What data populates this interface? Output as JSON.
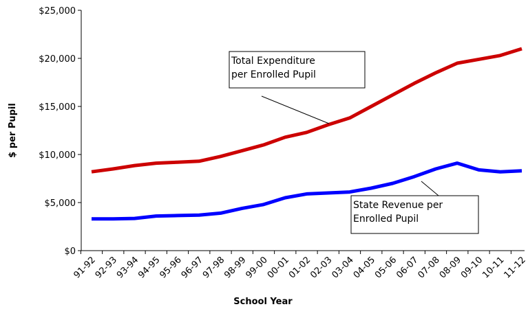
{
  "chart_data": {
    "type": "line",
    "x_label": "School Year",
    "y_label": "$ per Pupil",
    "categories": [
      "91-92",
      "92-93",
      "93-94",
      "94-95",
      "95-96",
      "96-97",
      "97-98",
      "98-99",
      "99-00",
      "00-01",
      "01-02",
      "02-03",
      "03-04",
      "04-05",
      "05-06",
      "06-07",
      "07-08",
      "08-09",
      "09-10",
      "10-11",
      "11-12"
    ],
    "series": [
      {
        "name": "Total Expenditure per Enrolled Pupil",
        "color": "#cc0000",
        "values": [
          8200,
          8500,
          8850,
          9100,
          9200,
          9300,
          9800,
          10400,
          11000,
          11800,
          12300,
          13100,
          13800,
          15000,
          16200,
          17400,
          18500,
          19500,
          19900,
          20300,
          21000
        ]
      },
      {
        "name": "State Revenue per Enrolled Pupil",
        "color": "#0000ff",
        "values": [
          3300,
          3300,
          3350,
          3600,
          3650,
          3700,
          3900,
          4400,
          4800,
          5500,
          5900,
          6000,
          6100,
          6500,
          7000,
          7700,
          8500,
          9100,
          8400,
          8200,
          8300
        ]
      }
    ],
    "annotations": [
      {
        "lines": [
          "Total Expenditure",
          "per Enrolled Pupil"
        ]
      },
      {
        "lines": [
          "State Revenue per",
          "Enrolled Pupil"
        ]
      }
    ],
    "ylim": [
      0,
      25000
    ],
    "yticks": [
      {
        "value": 0,
        "label": "$0"
      },
      {
        "value": 5000,
        "label": "$5,000"
      },
      {
        "value": 10000,
        "label": "$10,000"
      },
      {
        "value": 15000,
        "label": "$15,000"
      },
      {
        "value": 20000,
        "label": "$20,000"
      },
      {
        "value": 25000,
        "label": "$25,000"
      }
    ],
    "grid": false
  }
}
